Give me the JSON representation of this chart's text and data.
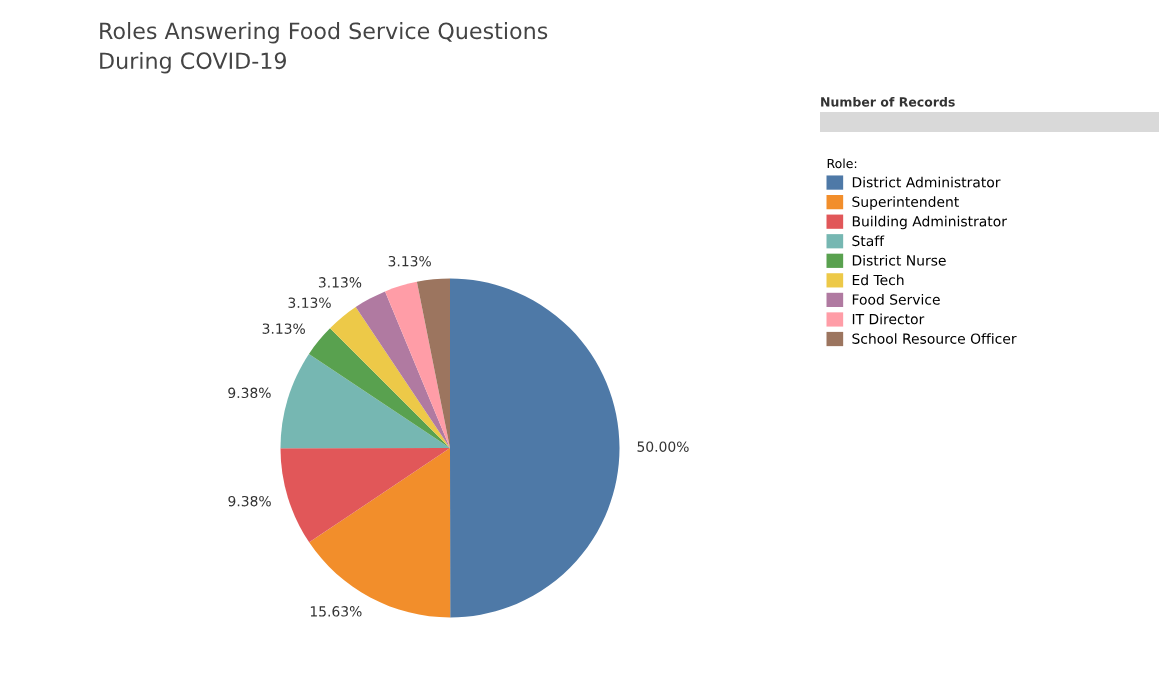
{
  "chart_data": {
    "type": "pie",
    "title": "Roles Answering Food Service Questions\nDuring COVID-19",
    "legend_title": "Role:",
    "annotations": [
      "Number of Records"
    ],
    "categories": [
      "District Administrator",
      "Superintendent",
      "Building Administrator",
      "Staff",
      "District Nurse",
      "Ed Tech",
      "Food Service",
      "IT Director",
      "School Resource Officer"
    ],
    "values": [
      50.0,
      15.63,
      9.38,
      9.38,
      3.13,
      3.13,
      3.13,
      3.13,
      3.13
    ],
    "colors": [
      "#4e79a7",
      "#f28e2b",
      "#e15759",
      "#76b7b2",
      "#59a14f",
      "#edc948",
      "#b07aa1",
      "#ff9da7",
      "#9c755f"
    ],
    "value_labels": [
      "50.00%",
      "15.63%",
      "9.38%",
      "9.38%",
      "3.13%",
      "3.13%",
      "3.13%",
      null,
      "3.13%"
    ],
    "legend": "top right"
  }
}
